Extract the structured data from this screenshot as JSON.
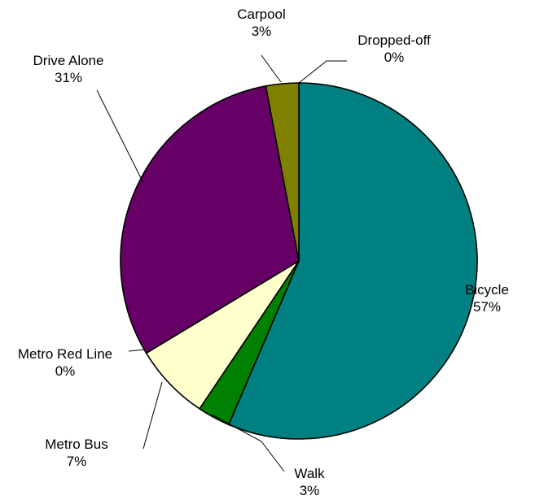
{
  "chart_data": {
    "type": "pie",
    "title": "",
    "start_angle_deg": 0,
    "direction": "clockwise",
    "slices": [
      {
        "label": "Bicycle",
        "value": 57,
        "pct_label": "57%",
        "color": "#008080"
      },
      {
        "label": "Walk",
        "value": 3,
        "pct_label": "3%",
        "color": "#008000"
      },
      {
        "label": "Metro Bus",
        "value": 7,
        "pct_label": "7%",
        "color": "#FFFFCC"
      },
      {
        "label": "Metro Red Line",
        "value": 0,
        "pct_label": "0%",
        "color": "#000080"
      },
      {
        "label": "Drive Alone",
        "value": 31,
        "pct_label": "31%",
        "color": "#660066"
      },
      {
        "label": "Carpool",
        "value": 3,
        "pct_label": "3%",
        "color": "#808000"
      },
      {
        "label": "Dropped-off",
        "value": 0,
        "pct_label": "0%",
        "color": "#FF00FF"
      }
    ]
  }
}
